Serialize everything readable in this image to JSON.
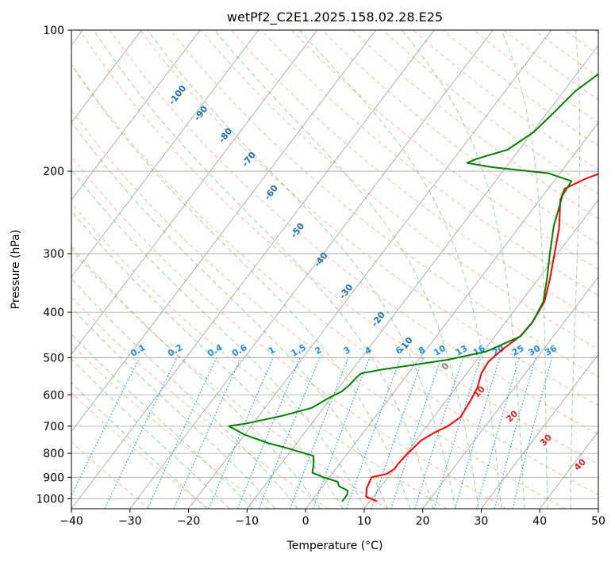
{
  "chart_data": {
    "type": "line",
    "title": "wetPf2_C2E1.2025.158.02.28.E25",
    "xlabel": "Temperature (°C)",
    "ylabel": "Pressure (hPa)",
    "xlim": [
      -40,
      50
    ],
    "ylim": [
      1050,
      100
    ],
    "yscale": "log",
    "skew": "skew-T log-P",
    "x_ticks": [
      -40,
      -30,
      -20,
      -10,
      0,
      10,
      20,
      30,
      40,
      50
    ],
    "y_ticks": [
      100,
      200,
      300,
      400,
      500,
      600,
      700,
      800,
      900,
      1000
    ],
    "grid": true,
    "series": [
      {
        "role": "temperature",
        "color": "#ff0000",
        "points": [
          [
            11.3,
            1013
          ],
          [
            8.8,
            990
          ],
          [
            7.8,
            950
          ],
          [
            7.2,
            900
          ],
          [
            9.3,
            885
          ],
          [
            10.0,
            865
          ],
          [
            10.0,
            840
          ],
          [
            10.3,
            800
          ],
          [
            10.9,
            750
          ],
          [
            12.3,
            720
          ],
          [
            13.6,
            700
          ],
          [
            14.6,
            670
          ],
          [
            14.2,
            620
          ],
          [
            13.7,
            580
          ],
          [
            12.5,
            540
          ],
          [
            12.2,
            510
          ],
          [
            13.0,
            480
          ],
          [
            14.3,
            450
          ],
          [
            14.6,
            420
          ],
          [
            14.0,
            380
          ],
          [
            12.0,
            340
          ],
          [
            9.5,
            300
          ],
          [
            7.0,
            265
          ],
          [
            3.5,
            230
          ],
          [
            2.8,
            218
          ],
          [
            5.0,
            208
          ],
          [
            7.5,
            200
          ],
          [
            8.6,
            195
          ],
          [
            8.3,
            180
          ],
          [
            8.5,
            165
          ],
          [
            7.8,
            150
          ],
          [
            8.3,
            137
          ],
          [
            9.8,
            125
          ],
          [
            11.0,
            115
          ],
          [
            14.3,
            107
          ],
          [
            17.2,
            100
          ]
        ]
      },
      {
        "role": "dewpoint",
        "color": "#008000",
        "points": [
          [
            5.3,
            1013
          ],
          [
            5.3,
            980
          ],
          [
            4.8,
            960
          ],
          [
            2.8,
            940
          ],
          [
            2.0,
            920
          ],
          [
            -1.0,
            900
          ],
          [
            -3.5,
            880
          ],
          [
            -4.5,
            840
          ],
          [
            -5.5,
            810
          ],
          [
            -11.0,
            780
          ],
          [
            -15.0,
            760
          ],
          [
            -20.0,
            730
          ],
          [
            -23.8,
            700
          ],
          [
            -21.0,
            690
          ],
          [
            -16.0,
            665
          ],
          [
            -12.0,
            640
          ],
          [
            -10.4,
            610
          ],
          [
            -9.0,
            590
          ],
          [
            -8.5,
            570
          ],
          [
            -8.3,
            550
          ],
          [
            -8.0,
            540
          ],
          [
            -5.0,
            530
          ],
          [
            -1.0,
            520
          ],
          [
            5.0,
            505
          ],
          [
            10.5,
            485
          ],
          [
            14.4,
            450
          ],
          [
            14.6,
            420
          ],
          [
            13.8,
            380
          ],
          [
            11.5,
            340
          ],
          [
            8.7,
            300
          ],
          [
            5.8,
            262
          ],
          [
            3.3,
            225
          ],
          [
            3.0,
            210
          ],
          [
            -2.0,
            202
          ],
          [
            -12.5,
            196
          ],
          [
            -17.2,
            192
          ],
          [
            -16.0,
            188
          ],
          [
            -12.0,
            180
          ],
          [
            -9.8,
            165
          ],
          [
            -8.9,
            150
          ],
          [
            -8.0,
            135
          ],
          [
            -5.6,
            120
          ],
          [
            -2.3,
            110
          ],
          [
            -0.3,
            100
          ]
        ]
      }
    ],
    "dry_adiabat_labels": [
      "-100",
      "-90",
      "-80",
      "-70",
      "-60",
      "-50",
      "-40",
      "-30",
      "-20",
      "-10"
    ],
    "moist_adiabat_labels": [
      "0",
      "10",
      "20",
      "30",
      "40"
    ],
    "mixing_ratio_labels": [
      "0.1",
      "0.2",
      "0.4",
      "0.6",
      "1",
      "1.5",
      "2",
      "3",
      "4",
      "6",
      "8",
      "10",
      "13",
      "16",
      "20",
      "25",
      "30",
      "36"
    ]
  },
  "colors": {
    "temperature": "#ff0000",
    "dewpoint": "#008000",
    "dry_adiabat": "#ff7f50",
    "moist_adiabat": "#2ca02c",
    "mixing_ratio": "#1f8fe0",
    "grid": "#a0a0a0"
  }
}
